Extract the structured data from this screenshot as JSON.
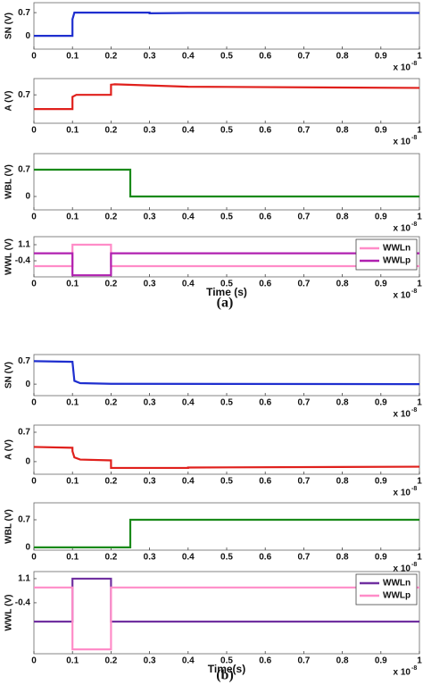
{
  "captions": [
    "(a)",
    "(b)"
  ],
  "chart_data": [
    {
      "type": "line",
      "ylabel": "SN (V)",
      "xlim": [
        0,
        1
      ],
      "xticks": [
        0,
        0.1,
        0.2,
        0.3,
        0.4,
        0.5,
        0.6,
        0.7,
        0.8,
        0.9,
        1
      ],
      "x_multiplier": "x 10",
      "x_exponent": "-8",
      "ylim": [
        -0.4,
        1.0
      ],
      "yticks": [
        0,
        0.7
      ],
      "series": [
        {
          "color": "#1f2fcf",
          "x": [
            0,
            0.1,
            0.1,
            0.105,
            0.3,
            0.3,
            0.4,
            1
          ],
          "values": [
            0,
            0,
            0.5,
            0.7,
            0.7,
            0.68,
            0.69,
            0.69
          ]
        }
      ]
    },
    {
      "type": "line",
      "ylabel": "A (V)",
      "xlim": [
        0,
        1
      ],
      "xticks": [
        0,
        0.1,
        0.2,
        0.3,
        0.4,
        0.5,
        0.6,
        0.7,
        0.8,
        0.9,
        1
      ],
      "x_multiplier": "x 10",
      "x_exponent": "-8",
      "ylim": [
        0,
        1.1
      ],
      "yticks": [
        0.7
      ],
      "series": [
        {
          "color": "#e0201c",
          "x": [
            0,
            0.1,
            0.1,
            0.11,
            0.2,
            0.2,
            0.21,
            0.4,
            1
          ],
          "values": [
            0.35,
            0.35,
            0.65,
            0.7,
            0.7,
            0.95,
            0.96,
            0.9,
            0.87
          ]
        }
      ]
    },
    {
      "type": "line",
      "ylabel": "WBL (V)",
      "xlim": [
        0,
        1
      ],
      "xticks": [
        0,
        0.1,
        0.2,
        0.3,
        0.4,
        0.5,
        0.6,
        0.7,
        0.8,
        0.9,
        1
      ],
      "x_multiplier": "x 10",
      "x_exponent": "-8",
      "ylim": [
        -0.35,
        1.12
      ],
      "yticks": [
        0,
        0.7
      ],
      "series": [
        {
          "color": "#1a8a1a",
          "x": [
            0,
            0.25,
            0.25,
            1
          ],
          "values": [
            0.7,
            0.7,
            0,
            0
          ]
        }
      ]
    },
    {
      "type": "line",
      "ylabel": "WWL (V)",
      "xlabel": "Time (s)",
      "xlim": [
        0,
        1
      ],
      "xticks": [
        0,
        0.1,
        0.2,
        0.3,
        0.4,
        0.5,
        0.6,
        0.7,
        0.8,
        0.9,
        1
      ],
      "x_multiplier": "x 10",
      "x_exponent": "-8",
      "ylim": [
        -1.9,
        1.85
      ],
      "yticks": [
        1.1,
        -0.4
      ],
      "legend": "upper right",
      "series": [
        {
          "name": "WWLn",
          "color": "#ff8cc8",
          "x": [
            0,
            0.1,
            0.1,
            0.2,
            0.2,
            1
          ],
          "values": [
            -0.9,
            -0.9,
            1.1,
            1.1,
            -0.9,
            -0.9
          ]
        },
        {
          "name": "WWLp",
          "color": "#b020b0",
          "x": [
            0,
            0.1,
            0.1,
            0.2,
            0.2,
            1
          ],
          "values": [
            0.3,
            0.3,
            -1.75,
            -1.75,
            0.3,
            0.3
          ]
        }
      ]
    },
    {
      "type": "line",
      "ylabel": "SN (V)",
      "xlim": [
        0,
        1
      ],
      "xticks": [
        0,
        0.1,
        0.2,
        0.3,
        0.4,
        0.5,
        0.6,
        0.7,
        0.8,
        0.9,
        1
      ],
      "x_multiplier": "x 10",
      "x_exponent": "-8",
      "ylim": [
        -0.35,
        0.9
      ],
      "yticks": [
        0,
        0.7
      ],
      "series": [
        {
          "color": "#1f2fcf",
          "x": [
            0,
            0.1,
            0.105,
            0.12,
            0.2,
            1
          ],
          "values": [
            0.7,
            0.68,
            0.1,
            0.03,
            0.01,
            0
          ]
        }
      ]
    },
    {
      "type": "line",
      "ylabel": "A (V)",
      "xlim": [
        0,
        1
      ],
      "xticks": [
        0,
        0.1,
        0.2,
        0.3,
        0.4,
        0.5,
        0.6,
        0.7,
        0.8,
        0.9,
        1
      ],
      "x_multiplier": "x 10",
      "x_exponent": "-8",
      "ylim": [
        -0.3,
        0.87
      ],
      "yticks": [
        0,
        0.7
      ],
      "series": [
        {
          "color": "#e0201c",
          "x": [
            0,
            0.1,
            0.1,
            0.105,
            0.12,
            0.2,
            0.2,
            0.4,
            0.4,
            1
          ],
          "values": [
            0.35,
            0.33,
            0.25,
            0.1,
            0.05,
            0.03,
            -0.15,
            -0.15,
            -0.14,
            -0.12
          ]
        }
      ]
    },
    {
      "type": "line",
      "ylabel": "WBL (V)",
      "xlim": [
        0,
        1
      ],
      "xticks": [
        0,
        0.1,
        0.2,
        0.3,
        0.4,
        0.5,
        0.6,
        0.7,
        0.8,
        0.9,
        1
      ],
      "x_multiplier": "x 10",
      "x_exponent": "-8",
      "ylim": [
        -0.07,
        1.13
      ],
      "yticks": [
        0,
        0.7
      ],
      "series": [
        {
          "color": "#1a8a1a",
          "x": [
            0,
            0.25,
            0.25,
            1
          ],
          "values": [
            0,
            0,
            0.7,
            0.7
          ]
        }
      ]
    },
    {
      "type": "line",
      "ylabel": "WWL (V)",
      "xlabel": "Time(s)",
      "xlim": [
        0,
        1
      ],
      "xticks": [
        0,
        0.1,
        0.2,
        0.3,
        0.4,
        0.5,
        0.6,
        0.7,
        0.8,
        0.9,
        1
      ],
      "x_multiplier": "x 10",
      "x_exponent": "-8",
      "ylim": [
        -3.57,
        1.54
      ],
      "yticks": [
        1.1,
        -0.4
      ],
      "legend": "upper right",
      "series": [
        {
          "name": "WWLn",
          "color": "#7030a0",
          "x": [
            0,
            0.1,
            0.1,
            0.2,
            0.2,
            1
          ],
          "values": [
            -1.57,
            -1.57,
            1.1,
            1.1,
            -1.57,
            -1.57
          ]
        },
        {
          "name": "WWLp",
          "color": "#ff8cc8",
          "x": [
            0,
            0.1,
            0.1,
            0.2,
            0.2,
            1
          ],
          "values": [
            0.55,
            0.55,
            -3.3,
            -3.3,
            0.55,
            0.55
          ]
        }
      ]
    }
  ]
}
